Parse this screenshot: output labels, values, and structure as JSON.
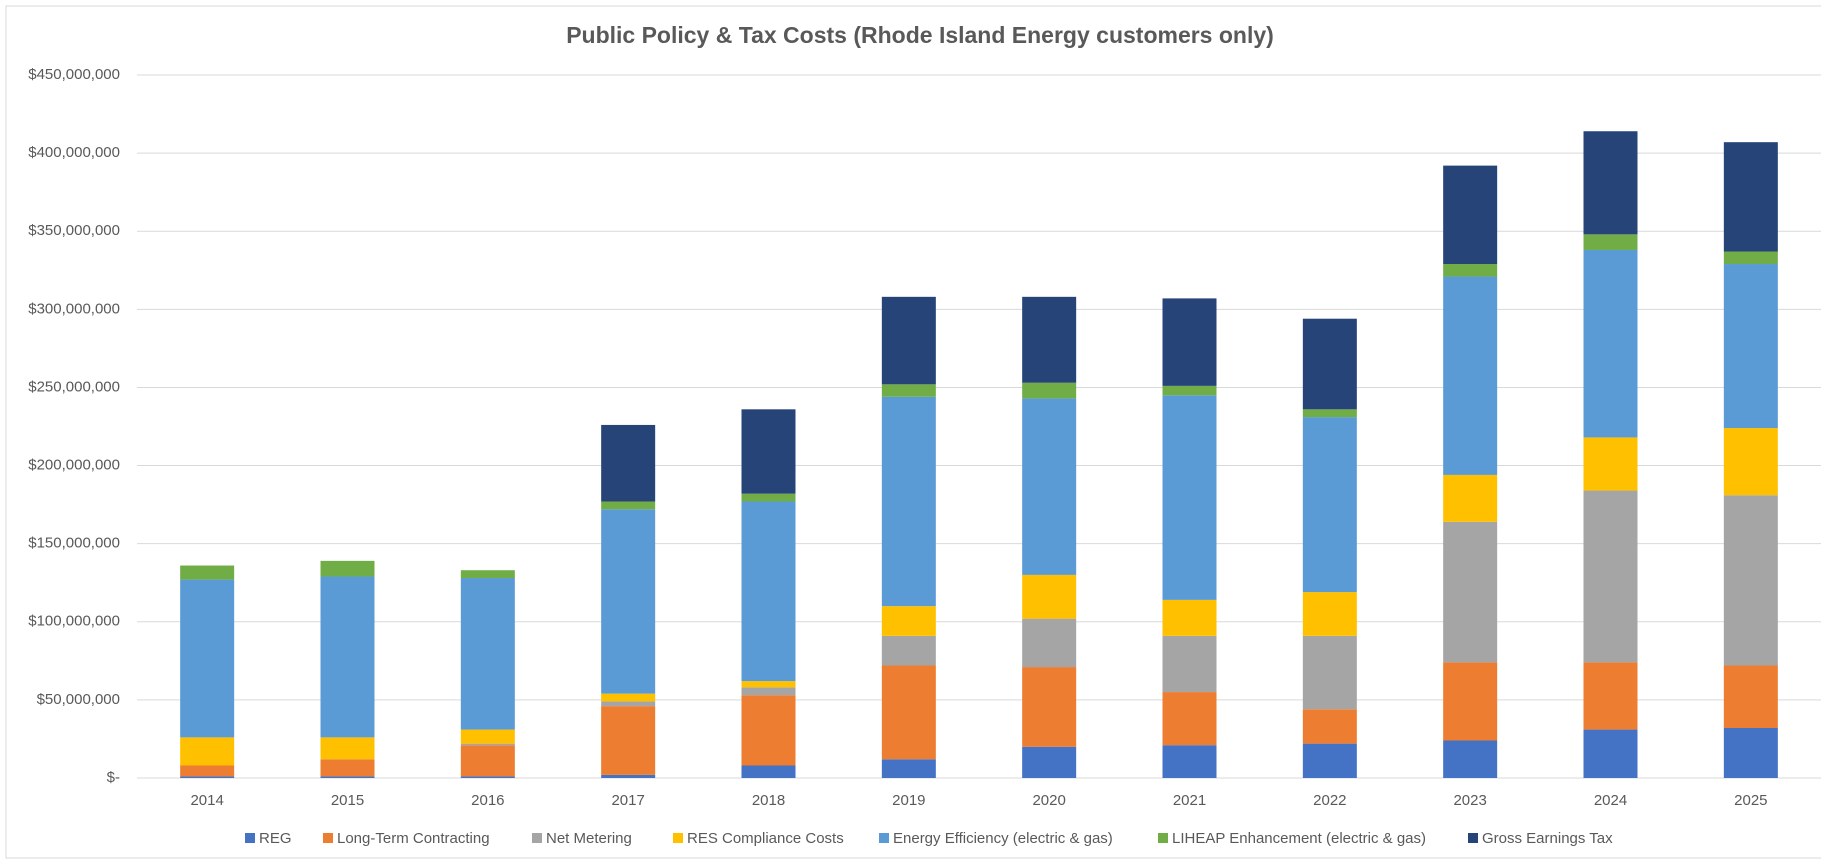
{
  "chart_data": {
    "type": "stacked_bar",
    "title": "Public Policy & Tax Costs (Rhode Island Energy customers only)",
    "categories": [
      "2014",
      "2015",
      "2016",
      "2017",
      "2018",
      "2019",
      "2020",
      "2021",
      "2022",
      "2023",
      "2024",
      "2025"
    ],
    "series": [
      {
        "name": "REG",
        "color": "#4472c4",
        "values": [
          1000000,
          1000000,
          1000000,
          2000000,
          8000000,
          12000000,
          20000000,
          21000000,
          22000000,
          24000000,
          31000000,
          32000000
        ]
      },
      {
        "name": "Long-Term Contracting",
        "color": "#ed7d31",
        "values": [
          7000000,
          11000000,
          20000000,
          44000000,
          45000000,
          60000000,
          51000000,
          34000000,
          22000000,
          50000000,
          43000000,
          40000000
        ]
      },
      {
        "name": "Net Metering",
        "color": "#a5a5a5",
        "values": [
          0,
          0,
          1000000,
          3000000,
          5000000,
          19000000,
          31000000,
          36000000,
          47000000,
          90000000,
          110000000,
          109000000
        ]
      },
      {
        "name": "RES Compliance Costs",
        "color": "#ffc000",
        "values": [
          18000000,
          14000000,
          9000000,
          5000000,
          4000000,
          19000000,
          28000000,
          23000000,
          28000000,
          30000000,
          34000000,
          43000000
        ]
      },
      {
        "name": "Energy Efficiency (electric & gas)",
        "color": "#5b9bd5",
        "values": [
          101000000,
          103000000,
          97000000,
          118000000,
          115000000,
          134000000,
          113000000,
          131000000,
          112000000,
          127000000,
          120000000,
          105000000
        ]
      },
      {
        "name": "LIHEAP Enhancement (electric & gas)",
        "color": "#70ad47",
        "values": [
          9000000,
          10000000,
          5000000,
          5000000,
          5000000,
          8000000,
          10000000,
          6000000,
          5000000,
          8000000,
          10000000,
          8000000
        ]
      },
      {
        "name": "Gross Earnings Tax",
        "color": "#264478",
        "values": [
          0,
          0,
          0,
          49000000,
          54000000,
          56000000,
          55000000,
          56000000,
          58000000,
          63000000,
          66000000,
          70000000
        ]
      }
    ],
    "ylim": [
      0,
      450000000
    ],
    "yticks": [
      {
        "value": 0,
        "label": "$-"
      },
      {
        "value": 50000000,
        "label": "$50,000,000"
      },
      {
        "value": 100000000,
        "label": "$100,000,000"
      },
      {
        "value": 150000000,
        "label": "$150,000,000"
      },
      {
        "value": 200000000,
        "label": "$200,000,000"
      },
      {
        "value": 250000000,
        "label": "$250,000,000"
      },
      {
        "value": 300000000,
        "label": "$300,000,000"
      },
      {
        "value": 350000000,
        "label": "$350,000,000"
      },
      {
        "value": 400000000,
        "label": "$400,000,000"
      },
      {
        "value": 450000000,
        "label": "$450,000,000"
      }
    ],
    "grid": true,
    "legend": "bottom"
  }
}
